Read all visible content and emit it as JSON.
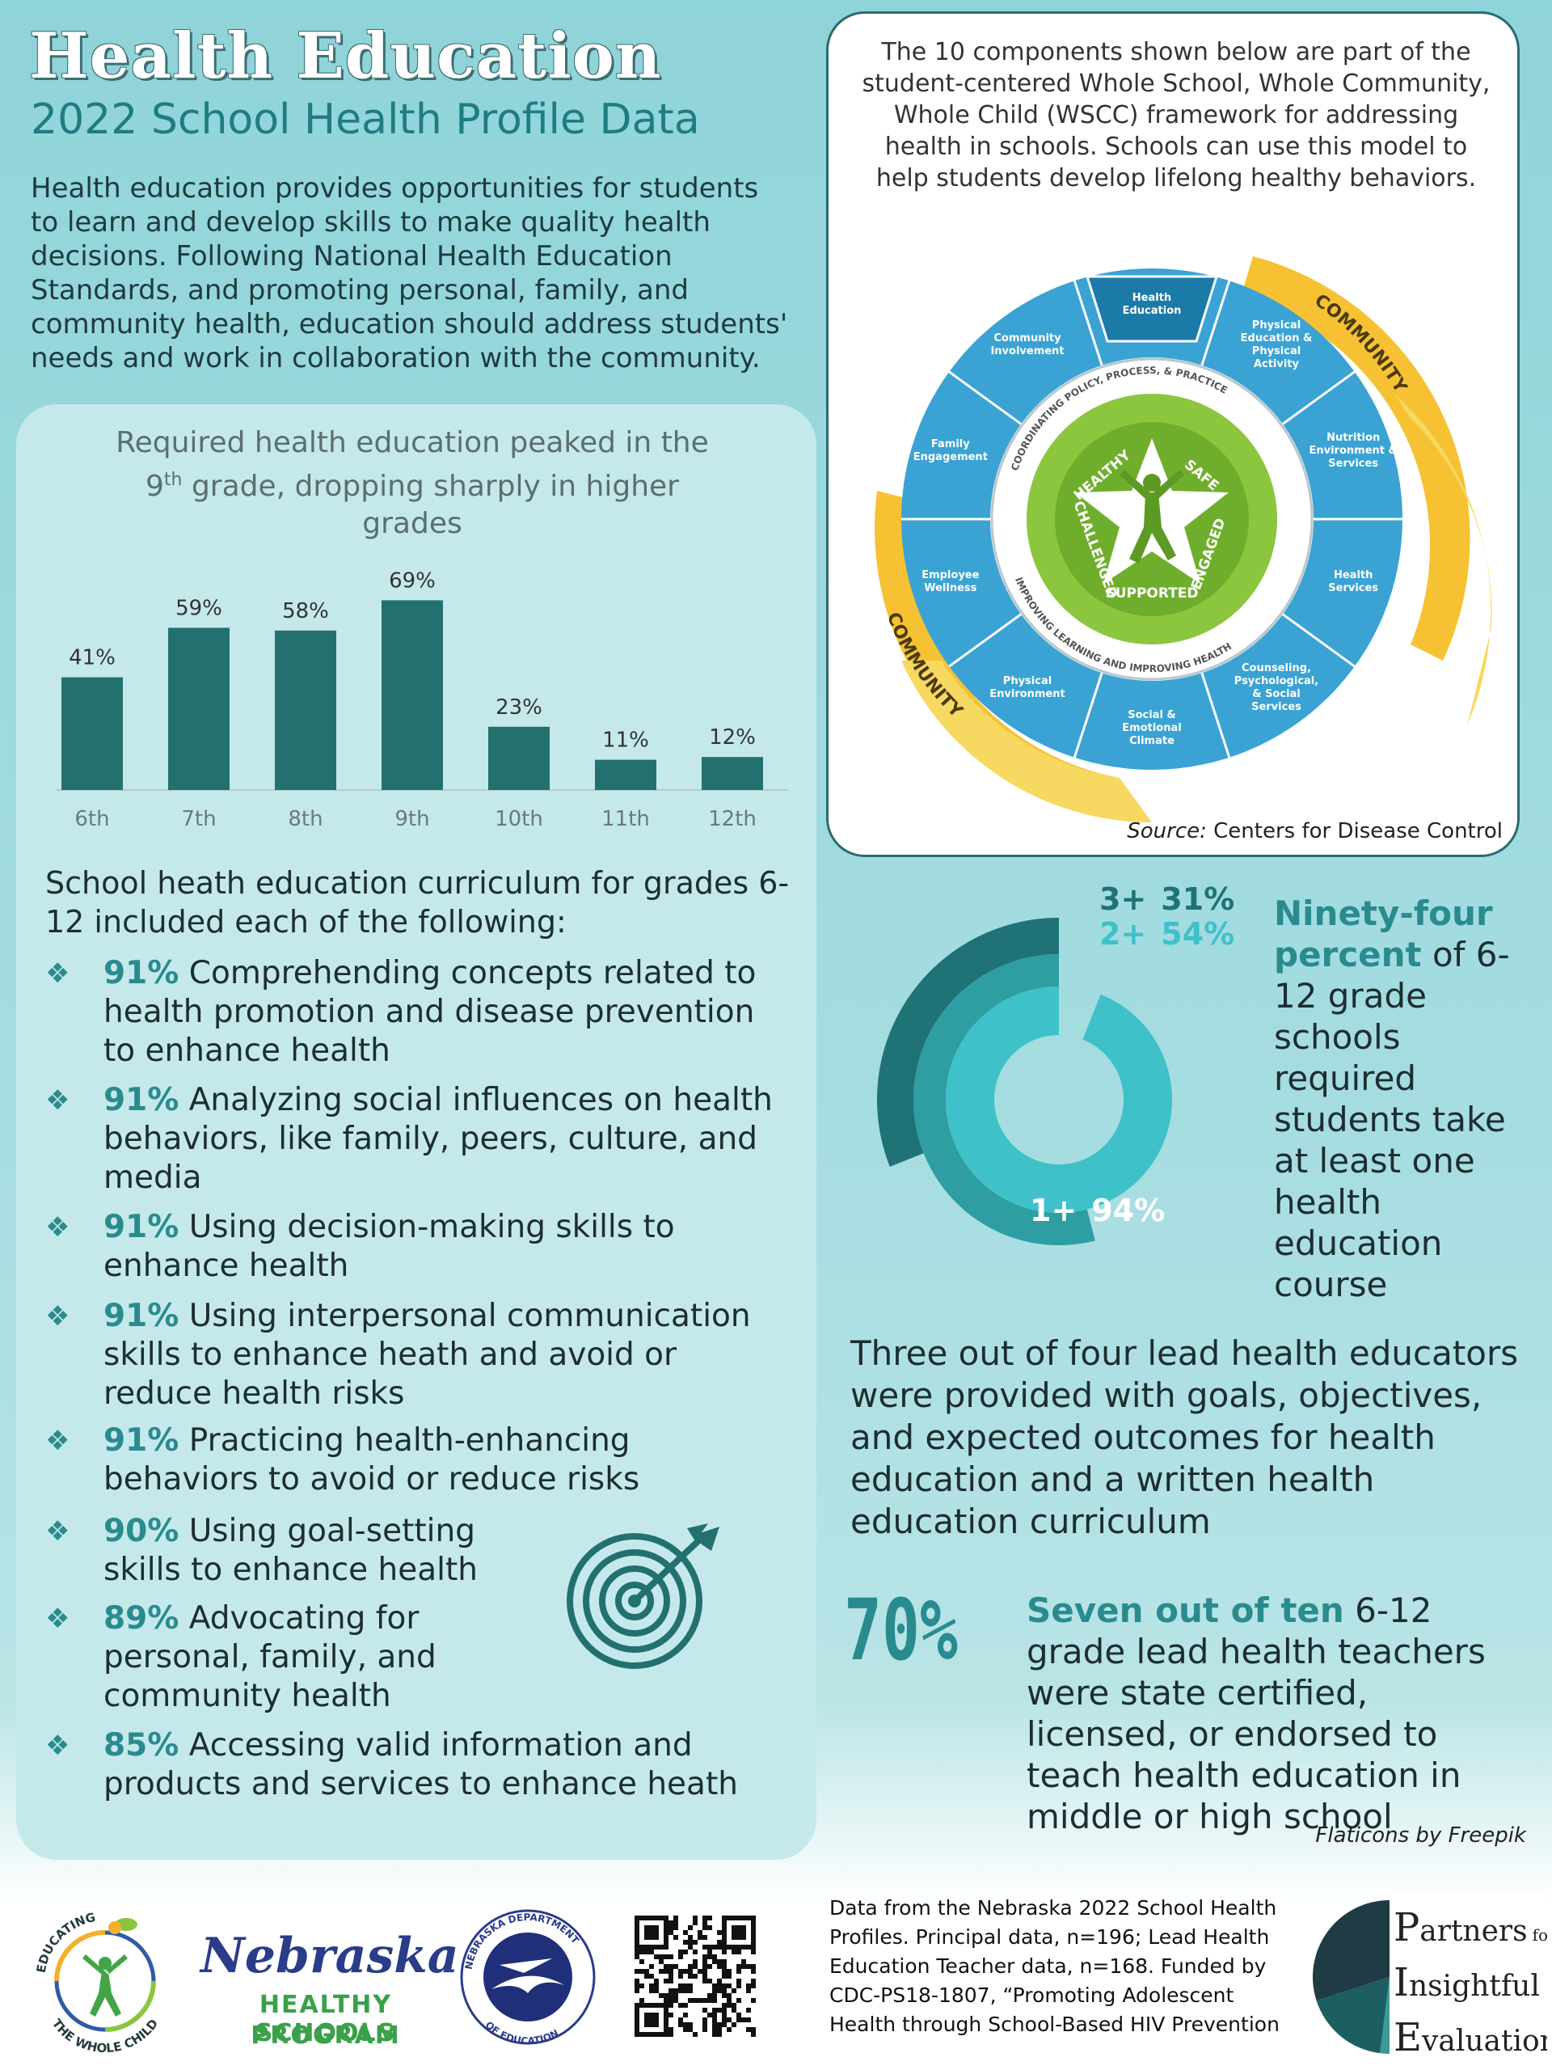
{
  "header": {
    "title": "Health Education",
    "subtitle": "2022 School Health Profile Data",
    "intro": "Health education provides opportunities for students to learn and develop skills to make quality health decisions. Following National Health Education Standards, and promoting personal, family, and community health, education should address students' needs and work in collaboration with the community."
  },
  "wscc": {
    "description": "The 10 components shown below are part of the student-centered Whole School, Whole Community, Whole Child (WSCC) framework for addressing health in schools. Schools can use this model to help students develop lifelong healthy behaviors.",
    "source_label": "Source:",
    "source_text": "Centers for Disease Control",
    "community_label": "COMMUNITY",
    "ring_top": "COORDINATING POLICY, PROCESS, & PRACTICE",
    "ring_bottom": "IMPROVING LEARNING AND IMPROVING HEALTH",
    "center_words": [
      "HEALTHY",
      "SAFE",
      "ENGAGED",
      "SUPPORTED",
      "CHALLENGED"
    ],
    "segments": [
      "Health Education",
      "Physical Education & Physical Activity",
      "Nutrition Environment & Services",
      "Health Services",
      "Counseling, Psychological, & Social Services",
      "Social & Emotional Climate",
      "Physical Environment",
      "Employee Wellness",
      "Family Engagement",
      "Community Involvement"
    ]
  },
  "chart_data": {
    "type": "bar",
    "title_line1": "Required health education peaked in the",
    "title_line2_sup": "th",
    "title_line2_pre": "9",
    "title_line2_post": " grade, dropping sharply in higher",
    "title_line3": "grades",
    "categories": [
      "6th",
      "7th",
      "8th",
      "9th",
      "10th",
      "11th",
      "12th"
    ],
    "values": [
      41,
      59,
      58,
      69,
      23,
      11,
      12
    ],
    "labels": [
      "41%",
      "59%",
      "58%",
      "69%",
      "23%",
      "11%",
      "12%"
    ],
    "ylim": [
      0,
      75
    ],
    "bar_color": "#23716f"
  },
  "curriculum": {
    "title": "School heath education curriculum for grades 6-12 included each of the following:",
    "bullet": "❖",
    "items": [
      {
        "pct": "91%",
        "text": " Comprehending concepts related to health promotion and disease prevention to enhance health"
      },
      {
        "pct": "91%",
        "text": " Analyzing social influences on health behaviors, like family, peers, culture, and media"
      },
      {
        "pct": "91%",
        "text": " Using decision-making skills to enhance health"
      },
      {
        "pct": "91%",
        "text": " Using interpersonal communication skills to enhance heath and avoid or reduce health risks"
      },
      {
        "pct": "91%",
        "text": " Practicing health-enhancing behaviors to avoid or reduce risks"
      },
      {
        "pct": "90%",
        "text": " Using goal-setting skills to enhance health"
      },
      {
        "pct": "89%",
        "text": " Advocating for personal, family, and community health"
      },
      {
        "pct": "85%",
        "text": " Accessing valid information and products and services to enhance heath"
      }
    ]
  },
  "donut": {
    "rings": [
      {
        "label": "3+",
        "value": "31%",
        "fraction": 0.31,
        "color": "#1f7276"
      },
      {
        "label": "2+",
        "value": "54%",
        "fraction": 0.54,
        "color": "#2e9ea3"
      },
      {
        "label": "1+",
        "value": "94%",
        "fraction": 0.94,
        "color": "#3fc1c9"
      }
    ],
    "statement_bold": "Ninety-four percent",
    "statement_rest": " of 6-12 grade schools required students take at least one health education course"
  },
  "three_four": "Three out of four lead health educators were provided with goals, objectives, and expected outcomes for health education and a written health education curriculum",
  "seventy": {
    "big": "70%",
    "bold": "Seven out of ten",
    "rest": " 6-12 grade lead health teachers were state certified, licensed, or endorsed to teach health education in middle or high school"
  },
  "credit": "Flaticons by Freepik",
  "footer": {
    "data_note": "Data from the Nebraska 2022 School Health Profiles. Principal data, n=196; Lead Health Education Teacher data, n=168. Funded by CDC-PS18-1807, “Promoting Adolescent Health through School-Based HIV Prevention",
    "etwc_top": "EDUCATING",
    "etwc_bottom": "THE WHOLE CHILD",
    "nhsp_line1": "Nebraska",
    "nhsp_line2": "HEALTHY SCHOOLS",
    "nhsp_line3": "PROGRAM",
    "nde_top": "NEBRASKA DEPARTMENT",
    "nde_bottom": "OF EDUCATION",
    "pie_line1_big": "P",
    "pie_line1": "artners",
    "pie_line1_small": "for",
    "pie_line2_big": "I",
    "pie_line2": "nsightful",
    "pie_line3_big": "E",
    "pie_line3": "valuation"
  }
}
